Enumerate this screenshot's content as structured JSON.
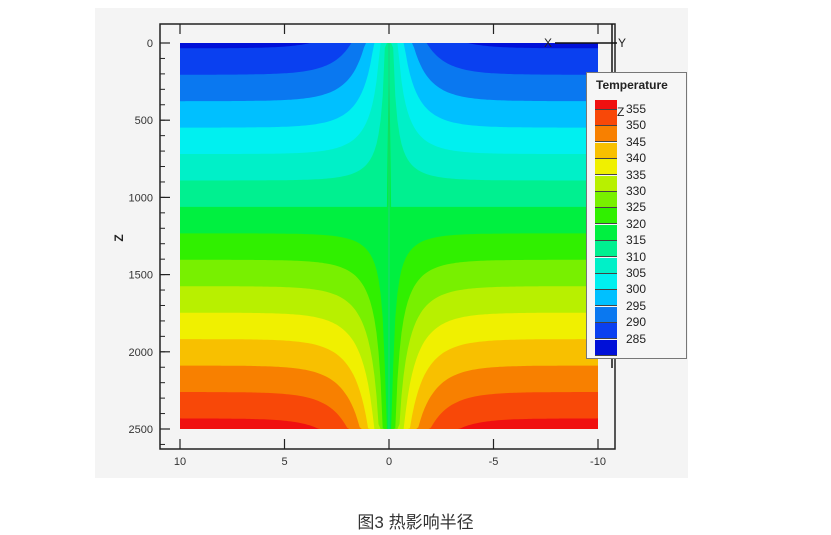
{
  "chart_data": {
    "type": "heatmap",
    "subtype": "filled-contour",
    "xlabel": "",
    "ylabel": "Z",
    "xlim": [
      10,
      -10
    ],
    "ylim": [
      2500,
      0
    ],
    "x_ticks": [
      "10",
      "5",
      "0",
      "-5",
      "-10"
    ],
    "y_ticks": [
      "0",
      "500",
      "1000",
      "1500",
      "2000",
      "2500"
    ],
    "legend": {
      "title": "Temperature",
      "placement": "right",
      "levels": [
        355,
        350,
        345,
        340,
        335,
        330,
        325,
        320,
        315,
        310,
        305,
        300,
        295,
        290,
        285
      ],
      "colors": [
        "#f01010",
        "#f84808",
        "#f88000",
        "#f8c000",
        "#f0f000",
        "#b8f000",
        "#78f000",
        "#30f000",
        "#00f040",
        "#00f090",
        "#00f0c8",
        "#00f0f0",
        "#00c0ff",
        "#0a78f0",
        "#0a40f0",
        "#0010d8"
      ]
    },
    "field_description": "temperature increases with depth Z from about 285 at top to 355 at 2500; contours bend downward near x=0",
    "center_value": 315,
    "grid": false
  },
  "axis_triad": {
    "x": "X",
    "y": "Y",
    "z": "Z"
  },
  "caption": "图3 热影响半径"
}
